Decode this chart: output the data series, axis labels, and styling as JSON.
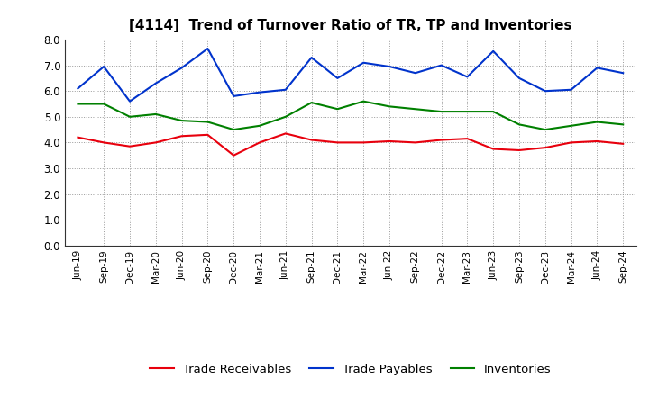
{
  "title": "[4114]  Trend of Turnover Ratio of TR, TP and Inventories",
  "x_labels": [
    "Jun-19",
    "Sep-19",
    "Dec-19",
    "Mar-20",
    "Jun-20",
    "Sep-20",
    "Dec-20",
    "Mar-21",
    "Jun-21",
    "Sep-21",
    "Dec-21",
    "Mar-22",
    "Jun-22",
    "Sep-22",
    "Dec-22",
    "Mar-23",
    "Jun-23",
    "Sep-23",
    "Dec-23",
    "Mar-24",
    "Jun-24",
    "Sep-24"
  ],
  "trade_receivables": [
    4.2,
    4.0,
    3.85,
    4.0,
    4.25,
    4.3,
    3.5,
    4.0,
    4.35,
    4.1,
    4.0,
    4.0,
    4.05,
    4.0,
    4.1,
    4.15,
    3.75,
    3.7,
    3.8,
    4.0,
    4.05,
    3.95
  ],
  "trade_payables": [
    6.1,
    6.95,
    5.6,
    6.3,
    6.9,
    7.65,
    5.8,
    5.95,
    6.05,
    7.3,
    6.5,
    7.1,
    6.95,
    6.7,
    7.0,
    6.55,
    7.55,
    6.5,
    6.0,
    6.05,
    6.9,
    6.7
  ],
  "inventories": [
    5.5,
    5.5,
    5.0,
    5.1,
    4.85,
    4.8,
    4.5,
    4.65,
    5.0,
    5.55,
    5.3,
    5.6,
    5.4,
    5.3,
    5.2,
    5.2,
    5.2,
    4.7,
    4.5,
    4.65,
    4.8,
    4.7
  ],
  "ylim": [
    0.0,
    8.0
  ],
  "yticks": [
    0.0,
    1.0,
    2.0,
    3.0,
    4.0,
    5.0,
    6.0,
    7.0,
    8.0
  ],
  "color_tr": "#e8000d",
  "color_tp": "#0033cc",
  "color_inv": "#008000",
  "legend_labels": [
    "Trade Receivables",
    "Trade Payables",
    "Inventories"
  ],
  "background_color": "#ffffff",
  "grid_color": "#999999"
}
